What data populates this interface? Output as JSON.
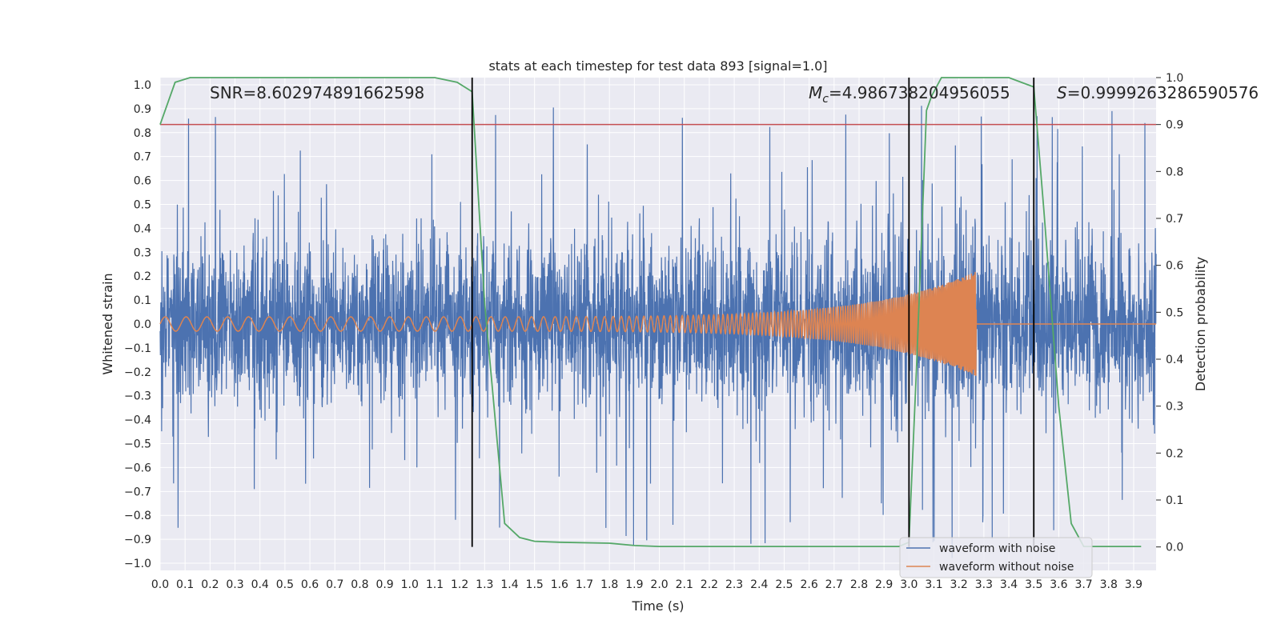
{
  "chart_data": {
    "type": "line",
    "title": "stats at each timestep for test data 893 [signal=1.0]",
    "xlabel": "Time (s)",
    "ylabel": "Whitened strain",
    "y2label": "Detection probability",
    "xlim": [
      0.0,
      3.99
    ],
    "ylim": [
      -1.03,
      1.03
    ],
    "y2lim": [
      -0.05,
      1.0
    ],
    "xticks": [
      "0.0",
      "0.1",
      "0.2",
      "0.3",
      "0.4",
      "0.5",
      "0.6",
      "0.7",
      "0.8",
      "0.9",
      "1.0",
      "1.1",
      "1.2",
      "1.3",
      "1.4",
      "1.5",
      "1.6",
      "1.7",
      "1.8",
      "1.9",
      "2.0",
      "2.1",
      "2.2",
      "2.3",
      "2.4",
      "2.5",
      "2.6",
      "2.7",
      "2.8",
      "2.9",
      "3.0",
      "3.1",
      "3.2",
      "3.3",
      "3.4",
      "3.5",
      "3.6",
      "3.7",
      "3.8",
      "3.9"
    ],
    "yticks": [
      "1.0",
      "0.9",
      "0.8",
      "0.7",
      "0.6",
      "0.5",
      "0.4",
      "0.3",
      "0.2",
      "0.1",
      "0.0",
      "−0.1",
      "−0.2",
      "−0.3",
      "−0.4",
      "−0.5",
      "−0.6",
      "−0.7",
      "−0.8",
      "−0.9",
      "−1.0"
    ],
    "y2ticks": [
      "1.0",
      "0.9",
      "0.8",
      "0.7",
      "0.6",
      "0.5",
      "0.4",
      "0.3",
      "0.2",
      "0.1",
      "0.0"
    ],
    "annotations": {
      "snr": "SNR=8.602974891662598",
      "mc_symbol": "M",
      "mc_sub": "c",
      "mc_value": "=4.986738204956055",
      "s_symbol": "S",
      "s_value": "=0.9999263286590576"
    },
    "threshold_line": {
      "axis": "y2",
      "value": 0.9,
      "color": "#c44e52"
    },
    "vertical_markers_s": [
      1.25,
      3.0,
      3.5
    ],
    "noise_seed": 893,
    "series": [
      {
        "name": "waveform with noise",
        "color": "#4c72b0",
        "noise_rms": 0.17,
        "peak_abs": 0.99
      },
      {
        "name": "waveform without noise",
        "color": "#dd8452",
        "chirp": {
          "f_start_hz": 12,
          "f_end_hz": 200,
          "amp_start": 0.03,
          "amp_peak": 0.22,
          "t_merger": 3.27
        }
      },
      {
        "name": "detection probability",
        "color": "#55a868",
        "axis": "y2",
        "x": [
          0.0,
          0.06,
          0.12,
          0.2,
          0.5,
          0.8,
          1.1,
          1.19,
          1.25,
          1.3,
          1.38,
          1.44,
          1.5,
          1.6,
          1.8,
          1.9,
          2.0,
          2.5,
          2.96,
          3.0,
          3.03,
          3.07,
          3.09,
          3.13,
          3.4,
          3.45,
          3.5,
          3.54,
          3.6,
          3.65,
          3.7,
          3.8,
          3.93
        ],
        "y": [
          0.9,
          0.99,
          1.0,
          1.0,
          1.0,
          1.0,
          1.0,
          0.99,
          0.97,
          0.52,
          0.05,
          0.02,
          0.012,
          0.01,
          0.008,
          0.003,
          0.001,
          0.001,
          0.001,
          0.01,
          0.38,
          0.93,
          0.96,
          1.0,
          1.0,
          0.99,
          0.98,
          0.72,
          0.3,
          0.05,
          0.001,
          0.001,
          0.001
        ]
      }
    ],
    "legend": {
      "position": "lower-right",
      "entries": [
        "waveform with noise",
        "waveform without noise"
      ]
    }
  }
}
